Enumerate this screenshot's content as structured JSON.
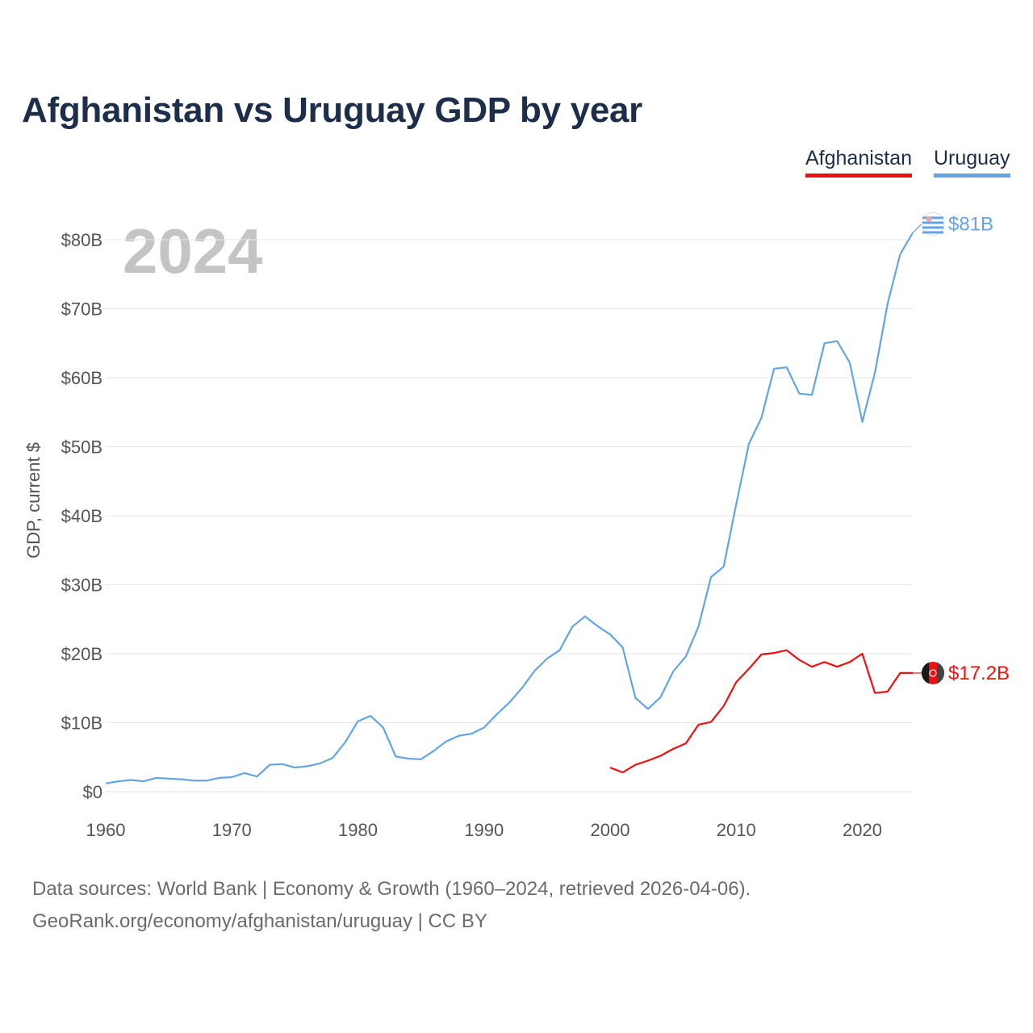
{
  "title": "Afghanistan vs Uruguay GDP by year",
  "legend": [
    {
      "label": "Afghanistan",
      "color": "#ee1111"
    },
    {
      "label": "Uruguay",
      "color": "#63a5e4"
    }
  ],
  "footer": {
    "line1": "Data sources: World Bank | Economy & Growth (1960–2024, retrieved 2026-04-06).",
    "line2": "GeoRank.org/economy/afghanistan/uruguay | CC BY"
  },
  "chart_data": {
    "type": "line",
    "title": "Afghanistan vs Uruguay GDP by year",
    "year_label": "2024",
    "ylabel": "GDP, current $",
    "xlabel": "",
    "xlim": [
      1960,
      2024
    ],
    "ylim": [
      0,
      80
    ],
    "y_unit": "billions of current US$",
    "x_ticks": [
      1960,
      1970,
      1980,
      1990,
      2000,
      2010,
      2020
    ],
    "y_ticks": [
      {
        "value": 0,
        "label": "$0"
      },
      {
        "value": 10,
        "label": "$10B"
      },
      {
        "value": 20,
        "label": "$20B"
      },
      {
        "value": 30,
        "label": "$30B"
      },
      {
        "value": 40,
        "label": "$40B"
      },
      {
        "value": 50,
        "label": "$50B"
      },
      {
        "value": 60,
        "label": "$60B"
      },
      {
        "value": 70,
        "label": "$70B"
      },
      {
        "value": 80,
        "label": "$80B"
      }
    ],
    "grid": true,
    "series": [
      {
        "name": "Uruguay",
        "color": "#63a5e4",
        "end_label": "$81B",
        "x": [
          1960,
          1961,
          1962,
          1963,
          1964,
          1965,
          1966,
          1967,
          1968,
          1969,
          1970,
          1971,
          1972,
          1973,
          1974,
          1975,
          1976,
          1977,
          1978,
          1979,
          1980,
          1981,
          1982,
          1983,
          1984,
          1985,
          1986,
          1987,
          1988,
          1989,
          1990,
          1991,
          1992,
          1993,
          1994,
          1995,
          1996,
          1997,
          1998,
          1999,
          2000,
          2001,
          2002,
          2003,
          2004,
          2005,
          2006,
          2007,
          2008,
          2009,
          2010,
          2011,
          2012,
          2013,
          2014,
          2015,
          2016,
          2017,
          2018,
          2019,
          2020,
          2021,
          2022,
          2023,
          2024
        ],
        "values": [
          1.2,
          1.5,
          1.7,
          1.5,
          2.0,
          1.9,
          1.8,
          1.6,
          1.6,
          2.0,
          2.1,
          2.7,
          2.2,
          3.9,
          4.0,
          3.5,
          3.7,
          4.1,
          4.9,
          7.2,
          10.2,
          11.0,
          9.3,
          5.1,
          4.8,
          4.7,
          5.9,
          7.3,
          8.1,
          8.4,
          9.3,
          11.2,
          12.9,
          15.0,
          17.5,
          19.3,
          20.5,
          23.9,
          25.4,
          24.0,
          22.8,
          20.9,
          13.6,
          12.0,
          13.7,
          17.4,
          19.6,
          23.9,
          31.1,
          32.6,
          41.7,
          50.4,
          54.2,
          61.3,
          61.5,
          57.7,
          57.5,
          65.0,
          65.3,
          62.2,
          53.6,
          60.7,
          70.7,
          77.9,
          81.0
        ]
      },
      {
        "name": "Afghanistan",
        "color": "#ee1111",
        "end_label": "$17.2B",
        "x": [
          2000,
          2001,
          2002,
          2003,
          2004,
          2005,
          2006,
          2007,
          2008,
          2009,
          2010,
          2011,
          2012,
          2013,
          2014,
          2015,
          2016,
          2017,
          2018,
          2019,
          2020,
          2021,
          2022,
          2023,
          2024
        ],
        "values": [
          3.5,
          2.8,
          3.9,
          4.5,
          5.2,
          6.2,
          7.0,
          9.7,
          10.1,
          12.4,
          15.9,
          17.8,
          19.9,
          20.1,
          20.5,
          19.1,
          18.1,
          18.8,
          18.1,
          18.8,
          20.0,
          14.3,
          14.5,
          17.2,
          17.2
        ]
      }
    ]
  }
}
